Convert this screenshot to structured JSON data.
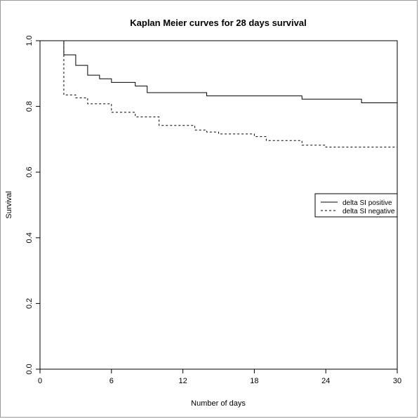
{
  "chart_data": {
    "type": "line",
    "title": "Kaplan Meier curves for 28 days survival",
    "xlabel": "Number of days",
    "ylabel": "Survival",
    "xlim": [
      0,
      30
    ],
    "ylim": [
      0.0,
      1.0
    ],
    "x_ticks": [
      "0",
      "6",
      "12",
      "18",
      "24",
      "30"
    ],
    "y_ticks": [
      "0.0",
      "0.2",
      "0.4",
      "0.6",
      "0.8",
      "1.0"
    ],
    "grid": false,
    "legend_position": "right",
    "series": [
      {
        "name": "delta SI positive",
        "line_style": "solid",
        "step_points": [
          [
            0,
            1.0
          ],
          [
            2,
            0.957
          ],
          [
            3,
            0.925
          ],
          [
            4,
            0.895
          ],
          [
            5,
            0.884
          ],
          [
            6,
            0.873
          ],
          [
            8,
            0.862
          ],
          [
            9,
            0.842
          ],
          [
            14,
            0.832
          ],
          [
            22,
            0.822
          ],
          [
            27,
            0.811
          ],
          [
            30,
            0.811
          ]
        ]
      },
      {
        "name": "delta SI negative",
        "line_style": "dashed",
        "step_points": [
          [
            0,
            1.0
          ],
          [
            2,
            0.835
          ],
          [
            3,
            0.826
          ],
          [
            4,
            0.808
          ],
          [
            6,
            0.782
          ],
          [
            8,
            0.768
          ],
          [
            10,
            0.742
          ],
          [
            13,
            0.728
          ],
          [
            14,
            0.722
          ],
          [
            15,
            0.716
          ],
          [
            18,
            0.708
          ],
          [
            19,
            0.696
          ],
          [
            22,
            0.682
          ],
          [
            24,
            0.676
          ],
          [
            30,
            0.676
          ]
        ]
      }
    ]
  }
}
